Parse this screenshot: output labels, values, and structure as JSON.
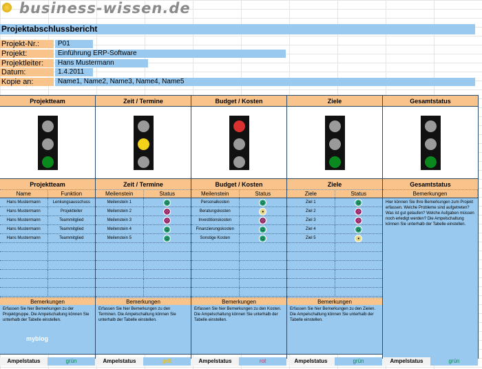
{
  "logo": "business-wissen.de",
  "title": "Projektabschlussbericht",
  "info": [
    {
      "label": "Projekt-Nr.:",
      "value": "P01"
    },
    {
      "label": "Projekt:",
      "value": "Einführung ERP-Software"
    },
    {
      "label": "Projektleiter:",
      "value": "Hans Mustermann"
    },
    {
      "label": "Datum:",
      "value": "1.4.2011"
    },
    {
      "label": "Kopie an:",
      "value": "Name1, Name2, Name3, Name4, Name5"
    }
  ],
  "colors": {
    "green": "#0a8a1e",
    "yellow": "#f3d21a",
    "red": "#d93030",
    "off": "#9a9a9a",
    "orange": "#f9c48c",
    "blue": "#99c9ef"
  },
  "columns": [
    {
      "title": "Projektteam",
      "light": "green",
      "sub": [
        "Name",
        "Funktion"
      ],
      "rows": [
        [
          "Hans Mustermann",
          "Lenkungsausschuss"
        ],
        [
          "Hans Mustermann",
          "Projektleiter"
        ],
        [
          "Hans Mustermann",
          "Teammitglied"
        ],
        [
          "Hans Mustermann",
          "Teammitglied"
        ],
        [
          "Hans Mustermann",
          "Teammitglied"
        ]
      ],
      "remarks_label": "Bemerkungen",
      "remarks": "Erfassen Sie hier Bemerkungen zu der Projektgruppe. Die Ampelschaltung können Sie unterhalb der Tabelle einstellen.",
      "ampel_label": "Ampelstatus",
      "ampel": "grün",
      "ampel_color": "#0a8a50"
    },
    {
      "title": "Zeit / Termine",
      "light": "yellow",
      "sub": [
        "Meilenstein",
        "Status"
      ],
      "rows": [
        [
          "Meilenstein 1",
          "happy"
        ],
        [
          "Meilenstein 2",
          "sad"
        ],
        [
          "Meilenstein 3",
          "sad"
        ],
        [
          "Meilenstein 4",
          "happy"
        ],
        [
          "Meilenstein 5",
          "happy"
        ]
      ],
      "remarks_label": "Bemerkungen",
      "remarks": "Erfassen Sie hier Bemerkungen zu den Terminen. Die Ampelschaltung können Sie unterhalb der Tabelle einstellen.",
      "ampel_label": "Ampelstatus",
      "ampel": "gelb",
      "ampel_color": "#e8c020"
    },
    {
      "title": "Budget / Kosten",
      "light": "red",
      "sub": [
        "Meilenstein",
        "Status"
      ],
      "rows": [
        [
          "Personalkosten",
          "happy"
        ],
        [
          "Beratungskosten",
          "neutral"
        ],
        [
          "Investitionskosten",
          "sad"
        ],
        [
          "Finanzierungskosten",
          "happy"
        ],
        [
          "Sonstige Kosten",
          "happy"
        ]
      ],
      "remarks_label": "Bemerkungen",
      "remarks": "Erfassen Sie hier Bemerkungen zu den Kosten. Die Ampelschaltung können Sie unterhalb der Tabelle einstellen.",
      "ampel_label": "Ampelstatus",
      "ampel": "rot",
      "ampel_color": "#d03050"
    },
    {
      "title": "Ziele",
      "light": "green",
      "sub": [
        "Ziele",
        "Status"
      ],
      "rows": [
        [
          "Ziel 1",
          "happy"
        ],
        [
          "Ziel 2",
          "sad"
        ],
        [
          "Ziel 3",
          "sad"
        ],
        [
          "Ziel 4",
          "happy"
        ],
        [
          "Ziel 5",
          "neutral"
        ]
      ],
      "remarks_label": "Bemerkungen",
      "remarks": "Erfassen Sie hier Bemerkungen zu den Zielen. Die Ampelschaltung können Sie unterhalb der Tabelle einstellen.",
      "ampel_label": "Ampelstatus",
      "ampel": "grün",
      "ampel_color": "#0a8a50"
    },
    {
      "title": "Gesamtstatus",
      "light": "green",
      "sub": [
        "Bemerkungen"
      ],
      "rows": [],
      "remarks": "Hier können Sie Ihre Bemerkungen zum Projekt erfassen. Welche Probleme sind aufgetreten? Was ist gut gelaufen? Welche Aufgaben müssen noch erledigt werden? Die Ampelschaltung können Sie unterhalb der Tabelle einstellen.",
      "ampel_label": "Ampelstatus",
      "ampel": "grün",
      "ampel_color": "#0a8a50"
    }
  ],
  "watermark": "myblog"
}
